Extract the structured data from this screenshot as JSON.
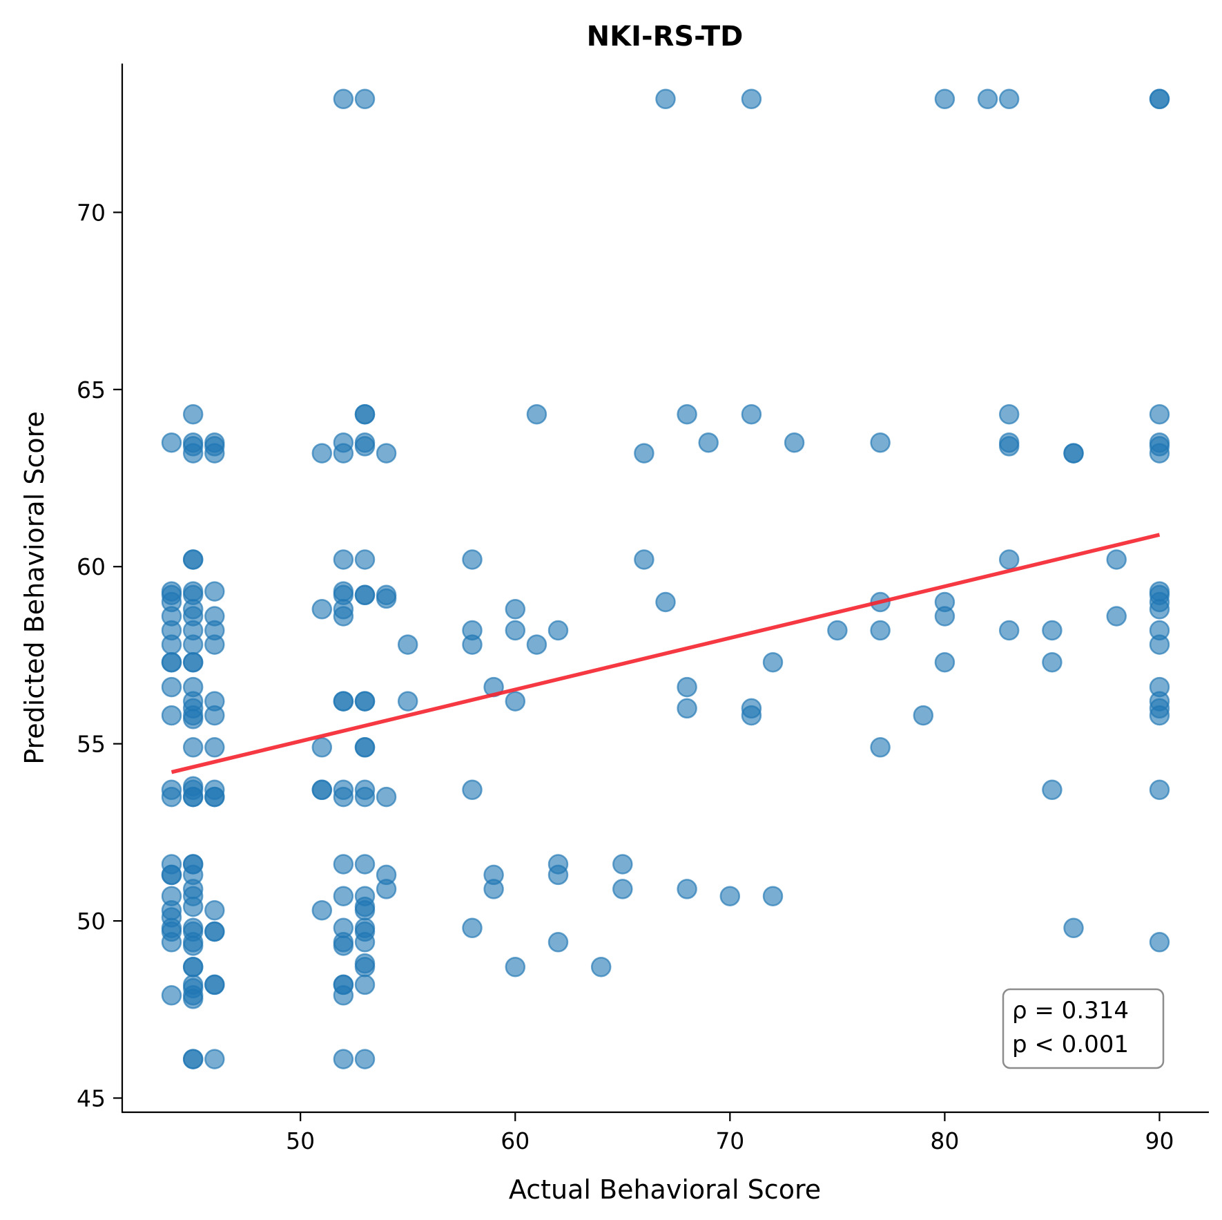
{
  "chart_data": {
    "type": "scatter",
    "title": "NKI-RS-TD",
    "xlabel": "Actual Behavioral Score",
    "ylabel": "Predicted Behavioral Score",
    "xlim": [
      41.7,
      92.3
    ],
    "ylim": [
      44.6,
      74.2
    ],
    "xticks": [
      50,
      60,
      70,
      80,
      90
    ],
    "yticks": [
      45,
      50,
      55,
      60,
      65,
      70
    ],
    "grid": false,
    "point_color": "#1f77b4",
    "fit_line_color": "#f5222d",
    "fit_line": {
      "x": [
        44,
        90
      ],
      "y": [
        54.2,
        60.9
      ]
    },
    "annotation": [
      "ρ = 0.314",
      "p < 0.001"
    ],
    "annotation_position": "bottom-right",
    "points": [
      [
        52,
        73.2
      ],
      [
        53,
        73.2
      ],
      [
        67,
        73.2
      ],
      [
        71,
        73.2
      ],
      [
        80,
        73.2
      ],
      [
        82,
        73.2
      ],
      [
        83,
        73.2
      ],
      [
        90,
        73.2
      ],
      [
        90,
        73.2
      ],
      [
        44,
        63.5
      ],
      [
        45,
        64.3
      ],
      [
        45,
        63.5
      ],
      [
        45,
        63.4
      ],
      [
        45,
        63.2
      ],
      [
        46,
        63.5
      ],
      [
        46,
        63.4
      ],
      [
        46,
        63.2
      ],
      [
        51,
        63.2
      ],
      [
        52,
        63.5
      ],
      [
        52,
        63.2
      ],
      [
        53,
        64.3
      ],
      [
        53,
        64.3
      ],
      [
        53,
        63.5
      ],
      [
        53,
        63.4
      ],
      [
        54,
        63.2
      ],
      [
        61,
        64.3
      ],
      [
        66,
        63.2
      ],
      [
        68,
        64.3
      ],
      [
        69,
        63.5
      ],
      [
        71,
        64.3
      ],
      [
        73,
        63.5
      ],
      [
        77,
        63.5
      ],
      [
        83,
        64.3
      ],
      [
        83,
        63.5
      ],
      [
        83,
        63.4
      ],
      [
        86,
        63.2
      ],
      [
        86,
        63.2
      ],
      [
        90,
        64.3
      ],
      [
        90,
        63.5
      ],
      [
        90,
        63.4
      ],
      [
        90,
        63.2
      ],
      [
        44,
        59.3
      ],
      [
        44,
        59.2
      ],
      [
        44,
        59.0
      ],
      [
        44,
        58.6
      ],
      [
        44,
        58.2
      ],
      [
        44,
        57.8
      ],
      [
        44,
        57.3
      ],
      [
        44,
        57.3
      ],
      [
        44,
        56.6
      ],
      [
        44,
        55.8
      ],
      [
        45,
        60.2
      ],
      [
        45,
        60.2
      ],
      [
        45,
        59.3
      ],
      [
        45,
        59.2
      ],
      [
        45,
        58.8
      ],
      [
        45,
        58.6
      ],
      [
        45,
        58.2
      ],
      [
        45,
        57.8
      ],
      [
        45,
        57.3
      ],
      [
        45,
        57.3
      ],
      [
        45,
        56.6
      ],
      [
        45,
        56.2
      ],
      [
        45,
        56.0
      ],
      [
        45,
        55.8
      ],
      [
        45,
        55.7
      ],
      [
        45,
        54.9
      ],
      [
        46,
        59.3
      ],
      [
        46,
        58.6
      ],
      [
        46,
        58.2
      ],
      [
        46,
        57.8
      ],
      [
        46,
        56.2
      ],
      [
        46,
        55.8
      ],
      [
        46,
        54.9
      ],
      [
        51,
        58.8
      ],
      [
        51,
        54.9
      ],
      [
        52,
        60.2
      ],
      [
        52,
        59.3
      ],
      [
        52,
        59.2
      ],
      [
        52,
        58.8
      ],
      [
        52,
        58.6
      ],
      [
        52,
        56.2
      ],
      [
        52,
        56.2
      ],
      [
        53,
        60.2
      ],
      [
        53,
        59.2
      ],
      [
        53,
        59.2
      ],
      [
        53,
        56.2
      ],
      [
        53,
        56.2
      ],
      [
        53,
        54.9
      ],
      [
        53,
        54.9
      ],
      [
        54,
        59.2
      ],
      [
        54,
        59.1
      ],
      [
        55,
        57.8
      ],
      [
        55,
        56.2
      ],
      [
        58,
        60.2
      ],
      [
        58,
        58.2
      ],
      [
        58,
        57.8
      ],
      [
        59,
        56.6
      ],
      [
        60,
        58.8
      ],
      [
        60,
        58.2
      ],
      [
        60,
        56.2
      ],
      [
        61,
        57.8
      ],
      [
        62,
        58.2
      ],
      [
        66,
        60.2
      ],
      [
        67,
        59.0
      ],
      [
        68,
        56.6
      ],
      [
        68,
        56.0
      ],
      [
        71,
        56.0
      ],
      [
        71,
        55.8
      ],
      [
        72,
        57.3
      ],
      [
        75,
        58.2
      ],
      [
        77,
        59.0
      ],
      [
        77,
        58.2
      ],
      [
        77,
        54.9
      ],
      [
        79,
        55.8
      ],
      [
        80,
        59.0
      ],
      [
        80,
        58.6
      ],
      [
        80,
        57.3
      ],
      [
        83,
        60.2
      ],
      [
        83,
        58.2
      ],
      [
        85,
        58.2
      ],
      [
        85,
        57.3
      ],
      [
        88,
        60.2
      ],
      [
        88,
        58.6
      ],
      [
        90,
        59.3
      ],
      [
        90,
        59.2
      ],
      [
        90,
        59.0
      ],
      [
        90,
        58.8
      ],
      [
        90,
        58.2
      ],
      [
        90,
        57.8
      ],
      [
        90,
        56.6
      ],
      [
        90,
        56.2
      ],
      [
        90,
        56.0
      ],
      [
        90,
        55.8
      ],
      [
        44,
        53.7
      ],
      [
        44,
        53.5
      ],
      [
        45,
        53.8
      ],
      [
        45,
        53.7
      ],
      [
        45,
        53.5
      ],
      [
        45,
        53.5
      ],
      [
        46,
        53.7
      ],
      [
        46,
        53.5
      ],
      [
        46,
        53.5
      ],
      [
        51,
        53.7
      ],
      [
        51,
        53.7
      ],
      [
        52,
        53.7
      ],
      [
        52,
        53.5
      ],
      [
        53,
        53.7
      ],
      [
        53,
        53.5
      ],
      [
        54,
        53.5
      ],
      [
        58,
        53.7
      ],
      [
        85,
        53.7
      ],
      [
        90,
        53.7
      ],
      [
        44,
        51.6
      ],
      [
        44,
        51.3
      ],
      [
        44,
        51.3
      ],
      [
        44,
        50.7
      ],
      [
        44,
        50.3
      ],
      [
        44,
        50.1
      ],
      [
        44,
        49.8
      ],
      [
        44,
        49.7
      ],
      [
        44,
        49.4
      ],
      [
        44,
        47.9
      ],
      [
        45,
        51.6
      ],
      [
        45,
        51.6
      ],
      [
        45,
        51.3
      ],
      [
        45,
        50.9
      ],
      [
        45,
        50.7
      ],
      [
        45,
        50.4
      ],
      [
        45,
        49.8
      ],
      [
        45,
        49.7
      ],
      [
        45,
        49.4
      ],
      [
        45,
        49.3
      ],
      [
        45,
        48.7
      ],
      [
        45,
        48.7
      ],
      [
        45,
        48.2
      ],
      [
        45,
        48.1
      ],
      [
        45,
        47.9
      ],
      [
        45,
        47.8
      ],
      [
        45,
        46.1
      ],
      [
        45,
        46.1
      ],
      [
        46,
        50.3
      ],
      [
        46,
        49.7
      ],
      [
        46,
        49.7
      ],
      [
        46,
        48.2
      ],
      [
        46,
        48.2
      ],
      [
        46,
        46.1
      ],
      [
        51,
        50.3
      ],
      [
        52,
        51.6
      ],
      [
        52,
        50.7
      ],
      [
        52,
        49.8
      ],
      [
        52,
        49.4
      ],
      [
        52,
        49.3
      ],
      [
        52,
        48.2
      ],
      [
        52,
        48.2
      ],
      [
        52,
        47.9
      ],
      [
        52,
        46.1
      ],
      [
        53,
        51.6
      ],
      [
        53,
        50.7
      ],
      [
        53,
        50.4
      ],
      [
        53,
        50.3
      ],
      [
        53,
        49.8
      ],
      [
        53,
        49.7
      ],
      [
        53,
        49.4
      ],
      [
        53,
        48.8
      ],
      [
        53,
        48.7
      ],
      [
        53,
        48.2
      ],
      [
        53,
        46.1
      ],
      [
        54,
        51.3
      ],
      [
        54,
        50.9
      ],
      [
        58,
        49.8
      ],
      [
        59,
        51.3
      ],
      [
        59,
        50.9
      ],
      [
        60,
        48.7
      ],
      [
        62,
        51.6
      ],
      [
        62,
        51.3
      ],
      [
        62,
        49.4
      ],
      [
        64,
        48.7
      ],
      [
        65,
        51.6
      ],
      [
        65,
        50.9
      ],
      [
        68,
        50.9
      ],
      [
        70,
        50.7
      ],
      [
        72,
        50.7
      ],
      [
        86,
        49.8
      ],
      [
        90,
        49.4
      ]
    ]
  }
}
